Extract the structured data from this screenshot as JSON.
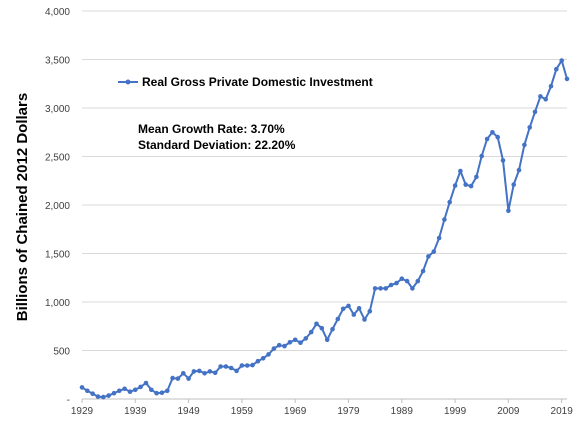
{
  "chart_data": {
    "type": "line",
    "title": "",
    "xlabel": "",
    "ylabel": "Billions of Chained 2012 Dollars",
    "ylim": [
      0,
      4000
    ],
    "xlim": [
      1929,
      2020
    ],
    "y_ticks": [
      0,
      500,
      1000,
      1500,
      2000,
      2500,
      3000,
      3500,
      4000
    ],
    "y_tick_labels": [
      "-",
      "500",
      "1,000",
      "1,500",
      "2,000",
      "2,500",
      "3,000",
      "3,500",
      "4,000"
    ],
    "x_ticks": [
      1929,
      1939,
      1949,
      1959,
      1969,
      1979,
      1989,
      1999,
      2009,
      2019
    ],
    "x_tick_labels": [
      "1929",
      "1939",
      "1949",
      "1959",
      "1969",
      "1979",
      "1989",
      "1999",
      "2009",
      "2019"
    ],
    "grid": "horizontal",
    "legend_position": "top-left",
    "series_color": "#4472c4",
    "series": [
      {
        "name": "Real Gross Private Domestic Investment",
        "x": [
          1929,
          1930,
          1931,
          1932,
          1933,
          1934,
          1935,
          1936,
          1937,
          1938,
          1939,
          1940,
          1941,
          1942,
          1943,
          1944,
          1945,
          1946,
          1947,
          1948,
          1949,
          1950,
          1951,
          1952,
          1953,
          1954,
          1955,
          1956,
          1957,
          1958,
          1959,
          1960,
          1961,
          1962,
          1963,
          1964,
          1965,
          1966,
          1967,
          1968,
          1969,
          1970,
          1971,
          1972,
          1973,
          1974,
          1975,
          1976,
          1977,
          1978,
          1979,
          1980,
          1981,
          1982,
          1983,
          1984,
          1985,
          1986,
          1987,
          1988,
          1989,
          1990,
          1991,
          1992,
          1993,
          1994,
          1995,
          1996,
          1997,
          1998,
          1999,
          2000,
          2001,
          2002,
          2003,
          2004,
          2005,
          2006,
          2007,
          2008,
          2009,
          2010,
          2011,
          2012,
          2013,
          2014,
          2015,
          2016,
          2017,
          2018,
          2019,
          2020
        ],
        "values": [
          120,
          85,
          55,
          25,
          20,
          35,
          60,
          85,
          105,
          75,
          95,
          125,
          165,
          95,
          60,
          65,
          85,
          215,
          210,
          265,
          210,
          285,
          290,
          265,
          285,
          270,
          335,
          335,
          320,
          290,
          345,
          345,
          350,
          390,
          420,
          460,
          520,
          555,
          545,
          585,
          610,
          580,
          625,
          690,
          775,
          730,
          610,
          720,
          825,
          930,
          960,
          870,
          935,
          820,
          905,
          1140,
          1140,
          1140,
          1175,
          1195,
          1240,
          1215,
          1140,
          1215,
          1320,
          1470,
          1520,
          1660,
          1850,
          2030,
          2200,
          2350,
          2210,
          2195,
          2290,
          2505,
          2680,
          2750,
          2700,
          2460,
          1940,
          2210,
          2360,
          2620,
          2800,
          2960,
          3120,
          3090,
          3225,
          3400,
          3490,
          3300
        ]
      }
    ],
    "annotations": [
      "Mean Growth Rate: 3.70%",
      "Standard Deviation: 22.20%"
    ]
  }
}
